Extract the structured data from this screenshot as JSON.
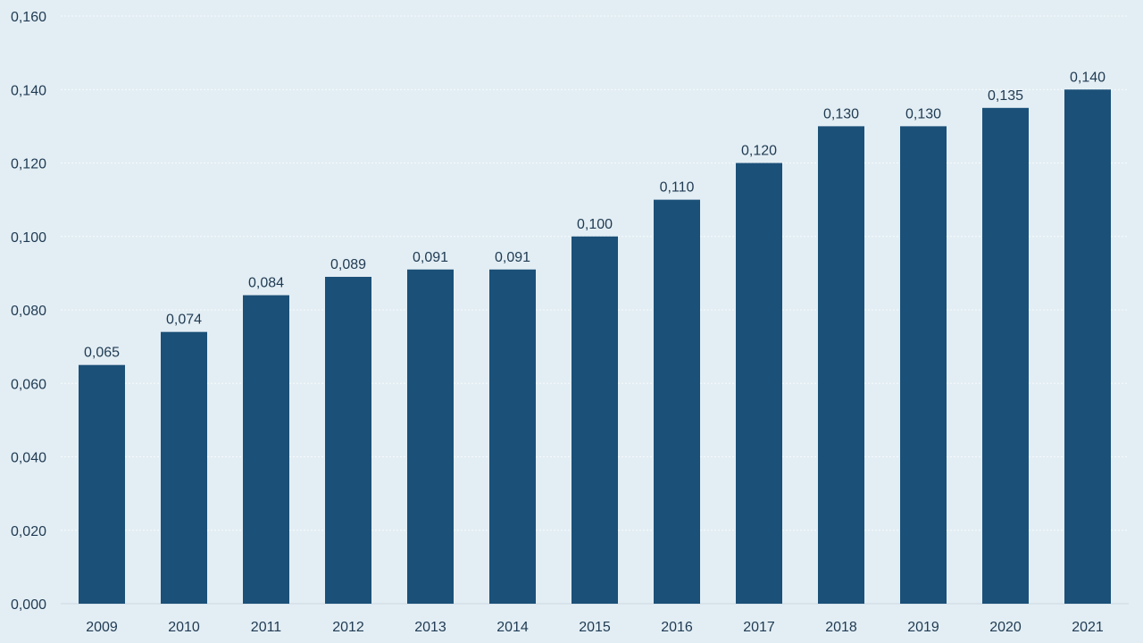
{
  "colors": {
    "background": "#e3eef4",
    "bar": "#1b5078",
    "text": "#1f3a52",
    "gridline": "#f7fbfd"
  },
  "chart_data": {
    "type": "bar",
    "categories": [
      "2009",
      "2010",
      "2011",
      "2012",
      "2013",
      "2014",
      "2015",
      "2016",
      "2017",
      "2018",
      "2019",
      "2020",
      "2021"
    ],
    "values": [
      0.065,
      0.074,
      0.084,
      0.089,
      0.091,
      0.091,
      0.1,
      0.11,
      0.12,
      0.13,
      0.13,
      0.135,
      0.14
    ],
    "data_labels": [
      "0,065",
      "0,074",
      "0,084",
      "0,089",
      "0,091",
      "0,091",
      "0,100",
      "0,110",
      "0,120",
      "0,130",
      "0,130",
      "0,135",
      "0,140"
    ],
    "y_ticks": [
      0,
      0.02,
      0.04,
      0.06,
      0.08,
      0.1,
      0.12,
      0.14,
      0.16
    ],
    "y_tick_labels": [
      "0,000",
      "0,020",
      "0,040",
      "0,060",
      "0,080",
      "0,100",
      "0,120",
      "0,140",
      "0,160"
    ],
    "ylim": [
      0,
      0.16
    ],
    "title": "",
    "xlabel": "",
    "ylabel": "",
    "grid": true,
    "legend": "none"
  }
}
